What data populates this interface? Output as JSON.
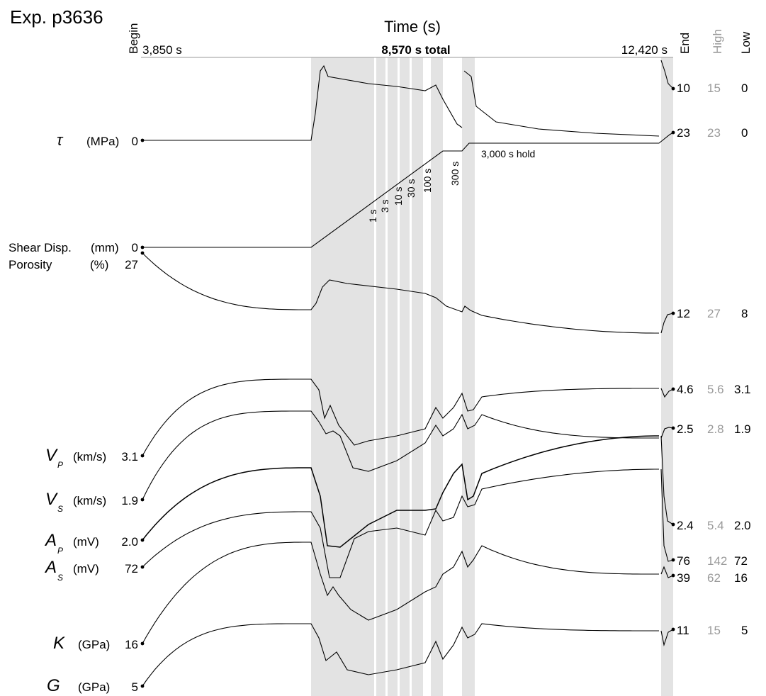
{
  "header": {
    "title": "Exp. p3636",
    "time_axis_label": "Time (s)",
    "start_label": "3,850 s",
    "total_label": "8,570 s total",
    "end_time_label": "12,420 s",
    "col_begin": "Begin",
    "col_end": "End",
    "col_high": "High",
    "col_low": "Low"
  },
  "colors": {
    "hold_shading": "#e3e3e3",
    "high_text": "#9a9a9a",
    "trace": "#000000"
  },
  "annotations": {
    "hold_labels": [
      "1 s",
      "3 s",
      "10 s",
      "30 s",
      "100 s",
      "300 s"
    ],
    "long_hold": "3,000 s hold"
  },
  "rows": [
    {
      "id": "tau",
      "symbol": "τ",
      "sub": "",
      "unit": "(MPa)",
      "begin": "0",
      "end": "10",
      "high": "15",
      "low": "0"
    },
    {
      "id": "shear",
      "symbol": "Shear Disp.",
      "sub": "",
      "unit": "(mm)",
      "begin": "0",
      "end": "23",
      "high": "23",
      "low": "0"
    },
    {
      "id": "porosity",
      "symbol": "Porosity",
      "sub": "",
      "unit": "(%)",
      "begin": "27",
      "end": "12",
      "high": "27",
      "low": "8"
    },
    {
      "id": "vp",
      "symbol": "V",
      "sub": "P",
      "unit": "(km/s)",
      "begin": "3.1",
      "end": "4.6",
      "high": "5.6",
      "low": "3.1"
    },
    {
      "id": "vs",
      "symbol": "V",
      "sub": "S",
      "unit": "(km/s)",
      "begin": "1.9",
      "end": "2.5",
      "high": "2.8",
      "low": "1.9"
    },
    {
      "id": "ap",
      "symbol": "A",
      "sub": "P",
      "unit": "(mV)",
      "begin": "2.0",
      "end": "2.4",
      "high": "5.4",
      "low": "2.0"
    },
    {
      "id": "as",
      "symbol": "A",
      "sub": "S",
      "unit": "(mV)",
      "begin": "72",
      "end": "76",
      "high": "142",
      "low": "72"
    },
    {
      "id": "k",
      "symbol": "K",
      "sub": "",
      "unit": "(GPa)",
      "begin": "16",
      "end": "39",
      "high": "62",
      "low": "16"
    },
    {
      "id": "g",
      "symbol": "G",
      "sub": "",
      "unit": "(GPa)",
      "begin": "5",
      "end": "11",
      "high": "15",
      "low": "5"
    }
  ],
  "chart_data": {
    "type": "line",
    "x_range_s": [
      3850,
      12420
    ],
    "x_unit": "s",
    "series": [
      {
        "name": "τ (MPa)",
        "begin": 0,
        "end": 10,
        "high": 15,
        "low": 0
      },
      {
        "name": "Shear Disp. (mm)",
        "begin": 0,
        "end": 23,
        "high": 23,
        "low": 0
      },
      {
        "name": "Porosity (%)",
        "begin": 27,
        "end": 12,
        "high": 27,
        "low": 8
      },
      {
        "name": "VP (km/s)",
        "begin": 3.1,
        "end": 4.6,
        "high": 5.6,
        "low": 3.1
      },
      {
        "name": "VS (km/s)",
        "begin": 1.9,
        "end": 2.5,
        "high": 2.8,
        "low": 1.9
      },
      {
        "name": "AP (mV)",
        "begin": 2.0,
        "end": 2.4,
        "high": 5.4,
        "low": 2.0
      },
      {
        "name": "AS (mV)",
        "begin": 72,
        "end": 76,
        "high": 142,
        "low": 72
      },
      {
        "name": "K (GPa)",
        "begin": 16,
        "end": 39,
        "high": 62,
        "low": 16
      },
      {
        "name": "G (GPa)",
        "begin": 5,
        "end": 11,
        "high": 15,
        "low": 5
      }
    ],
    "hold_durations_s": [
      1,
      3,
      10,
      30,
      100,
      300,
      3000
    ]
  }
}
